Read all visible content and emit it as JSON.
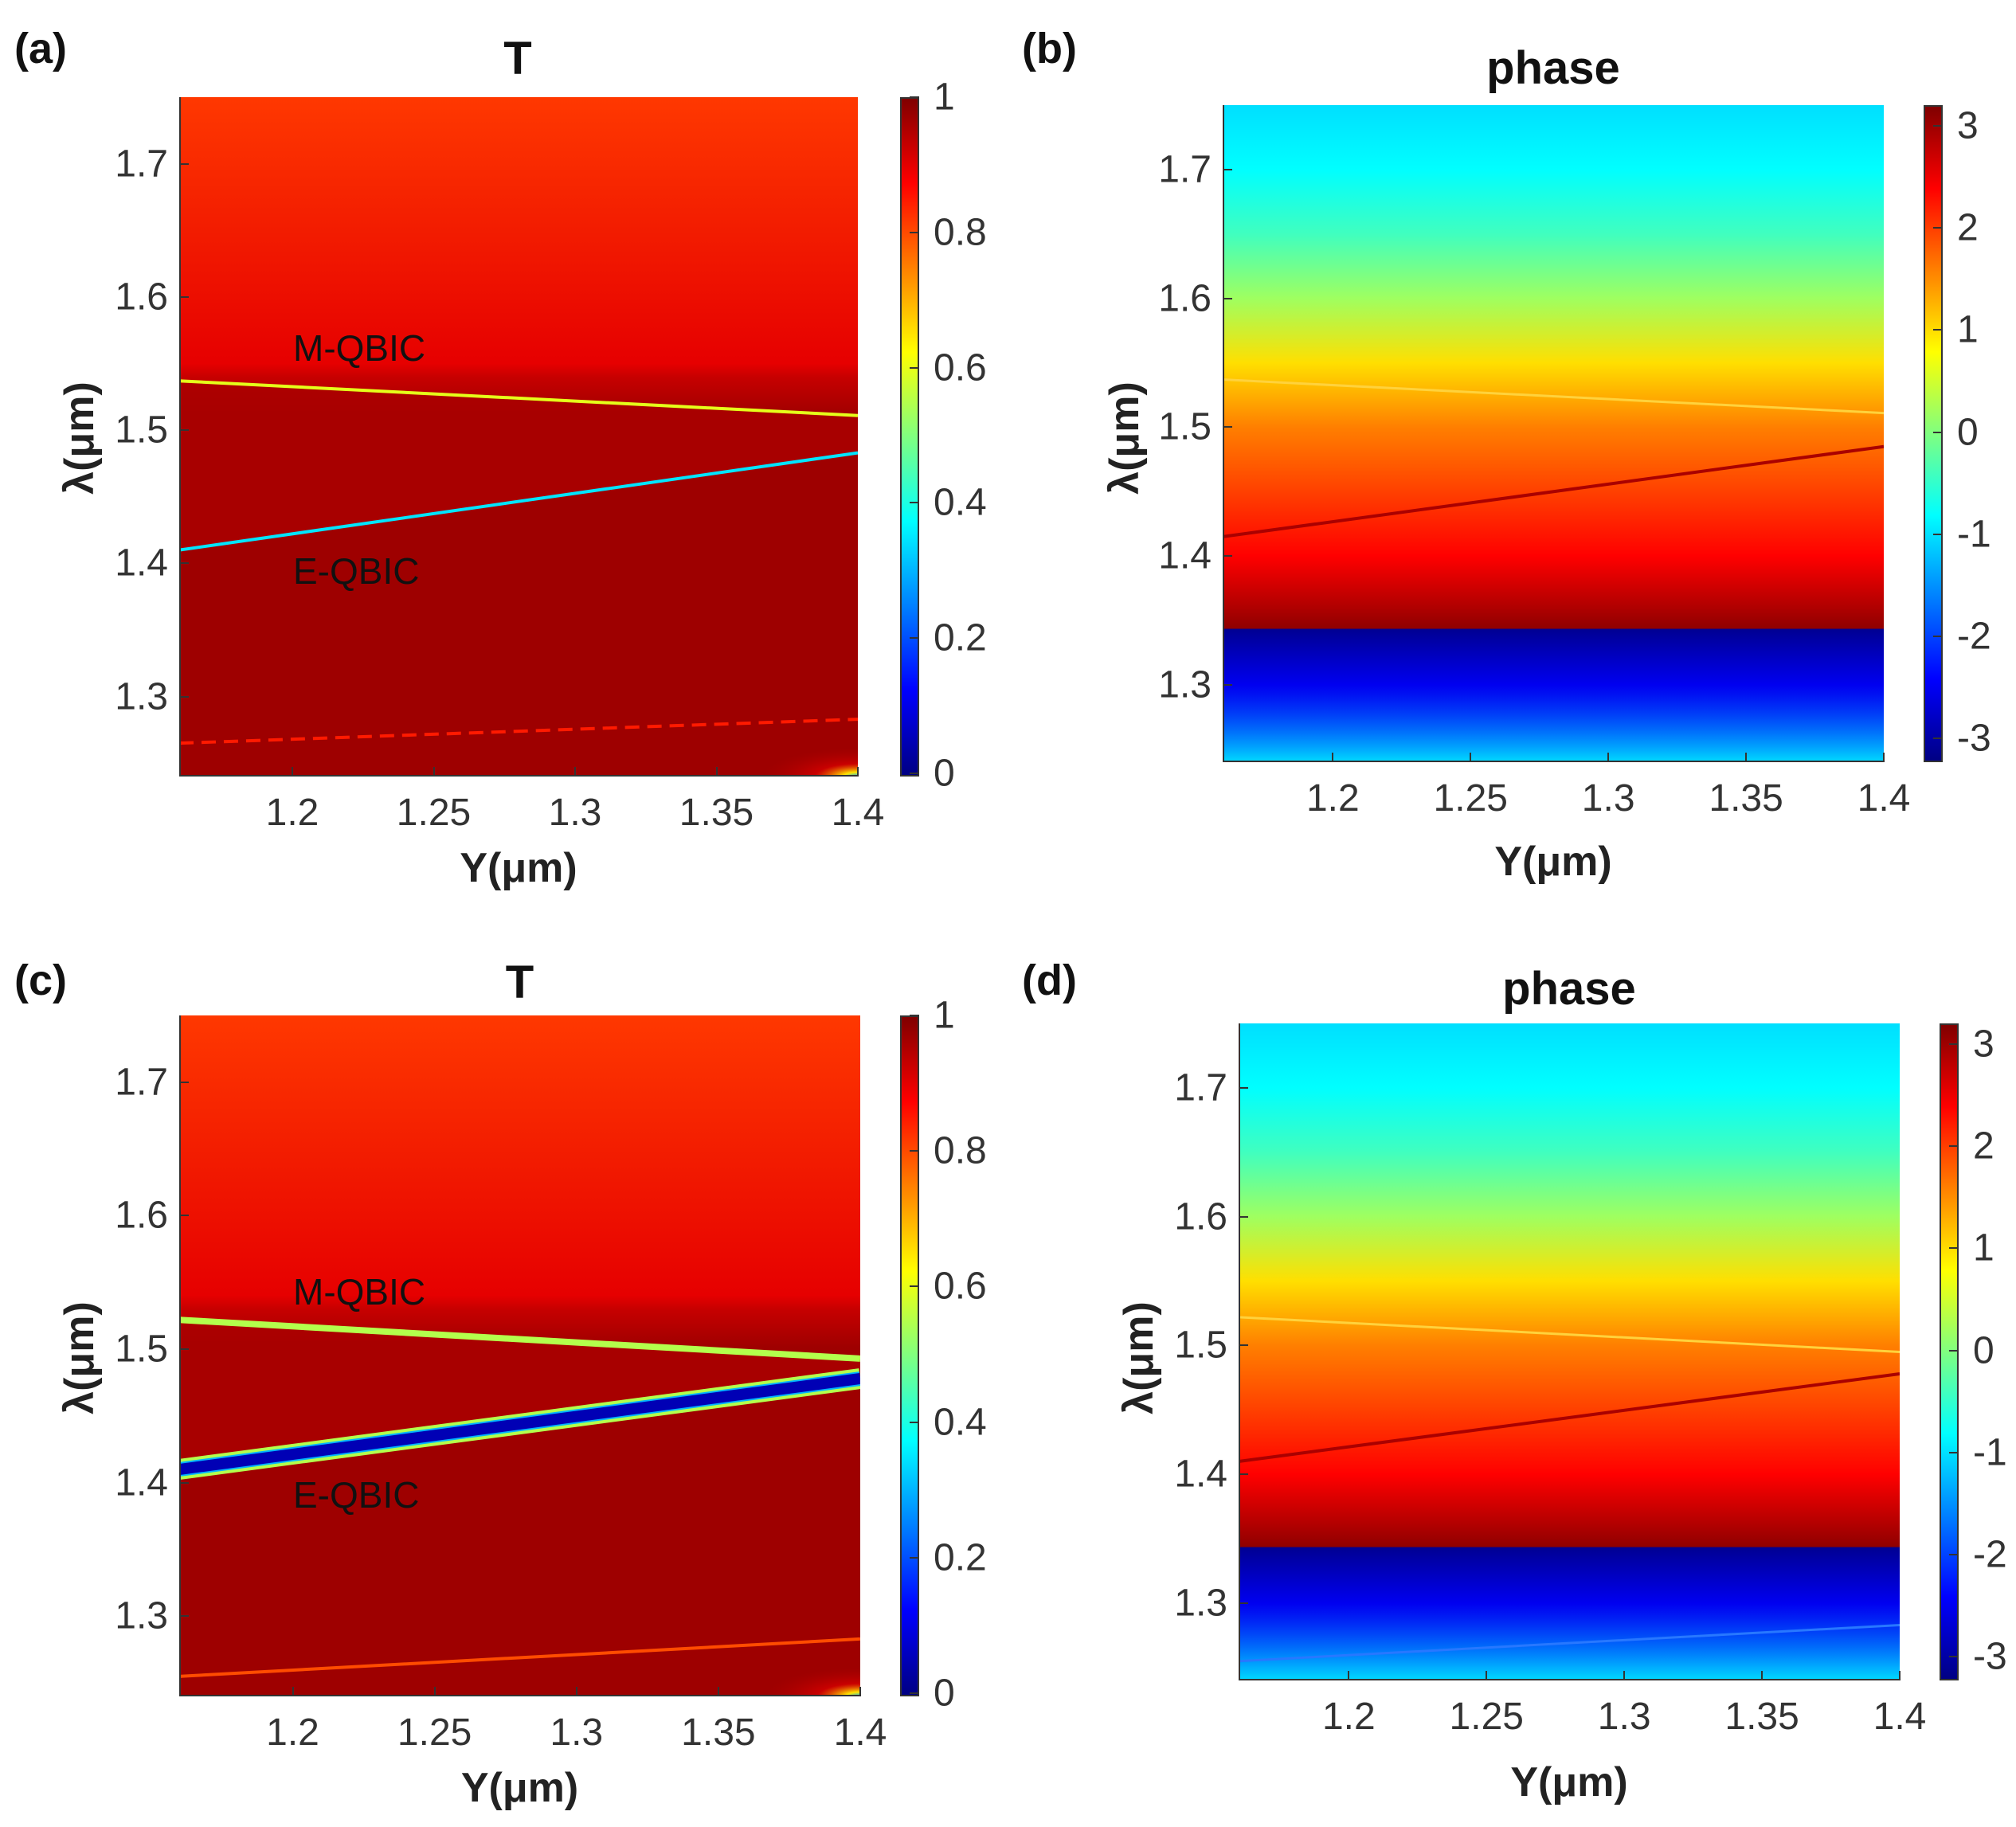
{
  "chart_data": [
    {
      "type": "heatmap",
      "panel": "(a)",
      "title": "T",
      "xlabel": "Y(μm)",
      "ylabel": "λ(μm)",
      "xlim": [
        1.16,
        1.4
      ],
      "ylim": [
        1.24,
        1.75
      ],
      "xticks": [
        "1.2",
        "1.25",
        "1.3",
        "1.35",
        "1.4"
      ],
      "yticks": [
        "1.3",
        "1.4",
        "1.5",
        "1.6",
        "1.7"
      ],
      "colorbar": {
        "min": 0,
        "max": 1,
        "ticks": [
          "0",
          "0.2",
          "0.4",
          "0.6",
          "0.8",
          "1"
        ]
      },
      "colormap": "jet",
      "annotations": [
        {
          "text": "M-QBIC",
          "x": 1.2,
          "y": 1.56
        },
        {
          "text": "E-QBIC",
          "x": 1.2,
          "y": 1.39
        }
      ],
      "resonances": [
        {
          "name": "M-QBIC",
          "x": [
            1.16,
            1.4
          ],
          "y": [
            1.537,
            1.511
          ],
          "min_T": 0.6
        },
        {
          "name": "E-QBIC",
          "x": [
            1.16,
            1.4
          ],
          "y": [
            1.41,
            1.483
          ],
          "min_T": 0.35
        },
        {
          "name": "weak",
          "x": [
            1.16,
            1.4
          ],
          "y": [
            1.265,
            1.283
          ],
          "min_T": 0.85
        }
      ],
      "regions": [
        {
          "range": [
            1.54,
            1.75
          ],
          "T": 0.82
        },
        {
          "range": [
            1.24,
            1.54
          ],
          "T": 0.97
        }
      ]
    },
    {
      "type": "heatmap",
      "panel": "(b)",
      "title": "phase",
      "xlabel": "Y(μm)",
      "ylabel": "λ(μm)",
      "xlim": [
        1.16,
        1.4
      ],
      "ylim": [
        1.24,
        1.75
      ],
      "xticks": [
        "1.2",
        "1.25",
        "1.3",
        "1.35",
        "1.4"
      ],
      "yticks": [
        "1.3",
        "1.4",
        "1.5",
        "1.6",
        "1.7"
      ],
      "colorbar": {
        "min": -3.2,
        "max": 3.2,
        "ticks": [
          "-3",
          "-2",
          "-1",
          "0",
          "1",
          "2",
          "3"
        ]
      },
      "colormap": "jet",
      "phase_profile": {
        "lambda": [
          1.24,
          1.3,
          1.343,
          1.344,
          1.4,
          1.45,
          1.5,
          1.55,
          1.6,
          1.65,
          1.7,
          1.75
        ],
        "phase": [
          -1.6,
          -2.5,
          -3.1,
          3.1,
          2.4,
          2.0,
          1.6,
          1.0,
          0.2,
          -0.4,
          -0.8,
          -1.0
        ]
      },
      "resonances": [
        {
          "name": "M-QBIC",
          "x": [
            1.16,
            1.4
          ],
          "y": [
            1.537,
            1.511
          ]
        },
        {
          "name": "E-QBIC",
          "x": [
            1.16,
            1.4
          ],
          "y": [
            1.415,
            1.485
          ]
        }
      ]
    },
    {
      "type": "heatmap",
      "panel": "(c)",
      "title": "T",
      "xlabel": "Y(μm)",
      "ylabel": "λ(μm)",
      "xlim": [
        1.16,
        1.4
      ],
      "ylim": [
        1.24,
        1.75
      ],
      "xticks": [
        "1.2",
        "1.25",
        "1.3",
        "1.35",
        "1.4"
      ],
      "yticks": [
        "1.3",
        "1.4",
        "1.5",
        "1.6",
        "1.7"
      ],
      "colorbar": {
        "min": 0,
        "max": 1,
        "ticks": [
          "0",
          "0.2",
          "0.4",
          "0.6",
          "0.8",
          "1"
        ]
      },
      "colormap": "jet",
      "annotations": [
        {
          "text": "M-QBIC",
          "x": 1.2,
          "y": 1.54
        },
        {
          "text": "E-QBIC",
          "x": 1.2,
          "y": 1.38
        }
      ],
      "resonances": [
        {
          "name": "M-QBIC",
          "x": [
            1.16,
            1.4
          ],
          "y": [
            1.522,
            1.493
          ],
          "min_T": 0.55
        },
        {
          "name": "E-QBIC",
          "x": [
            1.16,
            1.4
          ],
          "y": [
            1.41,
            1.478
          ],
          "min_T": 0.05
        },
        {
          "name": "weak",
          "x": [
            1.16,
            1.4
          ],
          "y": [
            1.255,
            1.283
          ],
          "min_T": 0.8
        }
      ],
      "regions": [
        {
          "range": [
            1.53,
            1.75
          ],
          "T": 0.82
        },
        {
          "range": [
            1.24,
            1.53
          ],
          "T": 0.97
        }
      ]
    },
    {
      "type": "heatmap",
      "panel": "(d)",
      "title": "phase",
      "xlabel": "Y(μm)",
      "ylabel": "λ(μm)",
      "xlim": [
        1.16,
        1.4
      ],
      "ylim": [
        1.24,
        1.75
      ],
      "xticks": [
        "1.2",
        "1.25",
        "1.3",
        "1.35",
        "1.4"
      ],
      "yticks": [
        "1.3",
        "1.4",
        "1.5",
        "1.6",
        "1.7"
      ],
      "colorbar": {
        "min": -3.2,
        "max": 3.2,
        "ticks": [
          "-3",
          "-2",
          "-1",
          "0",
          "1",
          "2",
          "3"
        ]
      },
      "colormap": "jet",
      "phase_profile": {
        "lambda": [
          1.24,
          1.3,
          1.343,
          1.344,
          1.4,
          1.45,
          1.5,
          1.55,
          1.6,
          1.65,
          1.7,
          1.75
        ],
        "phase": [
          -1.5,
          -2.5,
          -3.1,
          3.1,
          2.4,
          2.0,
          1.6,
          1.0,
          0.2,
          -0.4,
          -0.8,
          -1.0
        ]
      },
      "resonances": [
        {
          "name": "M-QBIC",
          "x": [
            1.16,
            1.4
          ],
          "y": [
            1.522,
            1.495
          ]
        },
        {
          "name": "E-QBIC",
          "x": [
            1.16,
            1.4
          ],
          "y": [
            1.41,
            1.478
          ]
        },
        {
          "name": "weak",
          "x": [
            1.16,
            1.4
          ],
          "y": [
            1.255,
            1.283
          ]
        }
      ]
    }
  ]
}
